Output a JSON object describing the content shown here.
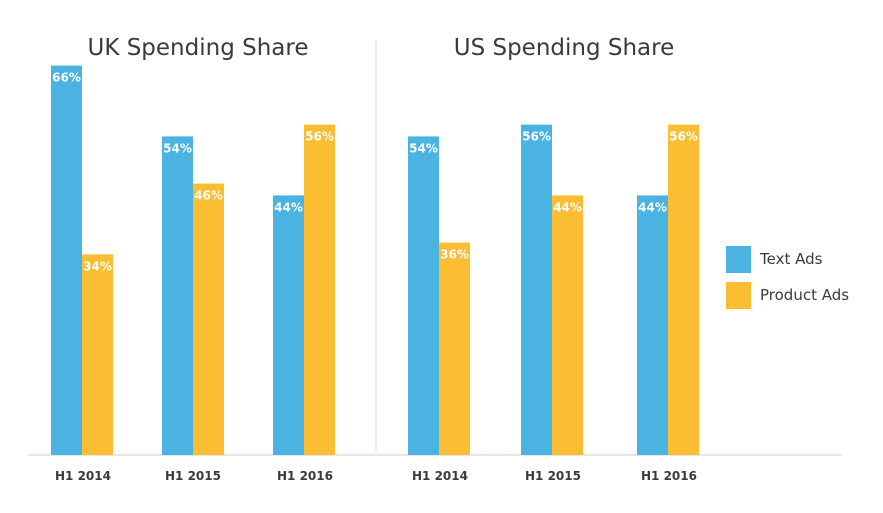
{
  "chart_data": [
    {
      "type": "bar",
      "title": "UK Spending Share",
      "categories": [
        "H1 2014",
        "H1 2015",
        "H1 2016"
      ],
      "series": [
        {
          "name": "Text Ads",
          "values": [
            66,
            54,
            44
          ],
          "labels": [
            "66%",
            "54%",
            "44%"
          ],
          "color": "#4BB3E2"
        },
        {
          "name": "Product Ads",
          "values": [
            34,
            46,
            56
          ],
          "labels": [
            "34%",
            "46%",
            "56%"
          ],
          "color": "#FBBE33"
        }
      ],
      "ylim": [
        0,
        70
      ],
      "unit": "%"
    },
    {
      "type": "bar",
      "title": "US Spending Share",
      "categories": [
        "H1 2014",
        "H1 2015",
        "H1 2016"
      ],
      "series": [
        {
          "name": "Text Ads",
          "values": [
            54,
            56,
            44
          ],
          "labels": [
            "54%",
            "56%",
            "44%"
          ],
          "color": "#4BB3E2"
        },
        {
          "name": "Product Ads",
          "values": [
            36,
            44,
            56
          ],
          "labels": [
            "36%",
            "44%",
            "56%"
          ],
          "color": "#FBBE33"
        }
      ],
      "ylim": [
        0,
        70
      ],
      "unit": "%"
    }
  ],
  "legend": {
    "items": [
      {
        "label": "Text Ads",
        "color": "#4BB3E2"
      },
      {
        "label": "Product Ads",
        "color": "#FBBE33"
      }
    ],
    "position": "right"
  },
  "colors": {
    "axis": "#cccccc",
    "divider": "#d9d9d9",
    "text": "#3a3a3a"
  }
}
